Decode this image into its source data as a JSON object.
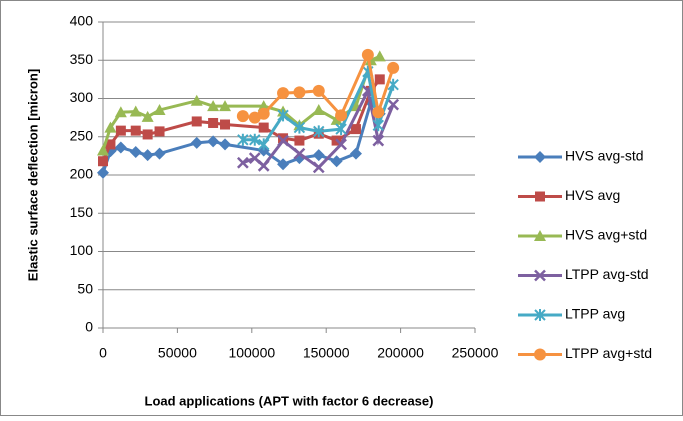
{
  "chart_data": {
    "type": "line",
    "xlabel": "Load applications  (APT with factor 6 decrease)",
    "ylabel": "Elastic surface deflection  [micron]",
    "xlim": [
      0,
      250000
    ],
    "xticks": [
      0,
      50000,
      100000,
      150000,
      200000,
      250000
    ],
    "ylim": [
      0,
      400
    ],
    "yticks": [
      0,
      50,
      100,
      150,
      200,
      250,
      300,
      350,
      400
    ],
    "grid": true,
    "legend": "right",
    "series": [
      {
        "name": "HVS avg-std",
        "color": "#4a7ebb",
        "marker": "diamond",
        "x": [
          0,
          5000,
          12000,
          22000,
          30000,
          38000,
          63000,
          74000,
          82000,
          108000,
          121000,
          132000,
          145000,
          157000,
          170000,
          180000,
          186000
        ],
        "values": [
          203,
          231,
          236,
          230,
          226,
          228,
          242,
          244,
          240,
          232,
          214,
          222,
          226,
          218,
          228,
          295,
          280
        ]
      },
      {
        "name": "HVS avg",
        "color": "#be4b48",
        "marker": "square",
        "x": [
          0,
          5000,
          12000,
          22000,
          30000,
          38000,
          63000,
          74000,
          82000,
          108000,
          121000,
          132000,
          145000,
          157000,
          170000,
          180000,
          186000
        ],
        "values": [
          218,
          240,
          258,
          258,
          253,
          257,
          270,
          268,
          266,
          262,
          248,
          245,
          254,
          245,
          260,
          310,
          325
        ]
      },
      {
        "name": "HVS avg+std",
        "color": "#98b954",
        "marker": "triangle",
        "x": [
          0,
          5000,
          12000,
          22000,
          30000,
          38000,
          63000,
          74000,
          82000,
          108000,
          121000,
          132000,
          145000,
          157000,
          170000,
          180000,
          186000
        ],
        "values": [
          232,
          262,
          282,
          283,
          276,
          285,
          297,
          290,
          290,
          290,
          283,
          265,
          285,
          272,
          290,
          350,
          355
        ]
      },
      {
        "name": "LTPP avg-std",
        "color": "#7d60a0",
        "marker": "x",
        "x": [
          94000,
          102000,
          108000,
          121000,
          132000,
          145000,
          160000,
          178000,
          185000,
          195000
        ],
        "values": [
          216,
          222,
          212,
          245,
          228,
          210,
          240,
          310,
          245,
          292
        ]
      },
      {
        "name": "LTPP avg",
        "color": "#46aac5",
        "marker": "star",
        "x": [
          94000,
          102000,
          108000,
          121000,
          132000,
          145000,
          160000,
          178000,
          185000,
          195000
        ],
        "values": [
          246,
          246,
          240,
          278,
          262,
          257,
          260,
          335,
          265,
          318
        ]
      },
      {
        "name": "LTPP avg+std",
        "color": "#f69240",
        "marker": "circle",
        "x": [
          94000,
          102000,
          108000,
          121000,
          132000,
          145000,
          160000,
          178000,
          185000,
          195000
        ],
        "values": [
          277,
          275,
          280,
          307,
          308,
          310,
          278,
          357,
          282,
          340
        ]
      }
    ]
  }
}
